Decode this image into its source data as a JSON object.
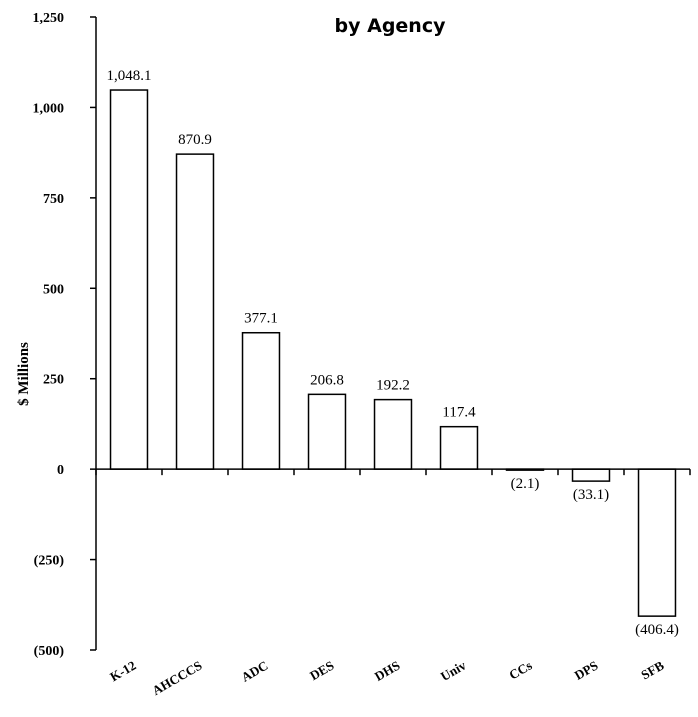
{
  "chart_data": {
    "type": "bar",
    "title_line1": "",
    "title_line2": "by Agency",
    "ylabel": "$ Millions",
    "ylim": [
      -500,
      1250
    ],
    "yticks": [
      -500,
      -250,
      0,
      250,
      500,
      750,
      1000,
      1250
    ],
    "ytick_labels": [
      "(500)",
      "(250)",
      "0",
      "250",
      "500",
      "750",
      "1,000",
      "1,250"
    ],
    "categories": [
      "K-12",
      "AHCCCS",
      "ADC",
      "DES",
      "DHS",
      "Univ",
      "CCs",
      "DPS",
      "SFB"
    ],
    "values": [
      1048.1,
      870.9,
      377.1,
      206.8,
      192.2,
      117.4,
      -2.1,
      -33.1,
      -406.4
    ],
    "data_labels": [
      "1,048.1",
      "870.9",
      "377.1",
      "206.8",
      "192.2",
      "117.4",
      "(2.1)",
      "(33.1)",
      "(406.4)"
    ],
    "bar_fill": "#ffffff",
    "bar_stroke": "#000000",
    "grid": false
  }
}
